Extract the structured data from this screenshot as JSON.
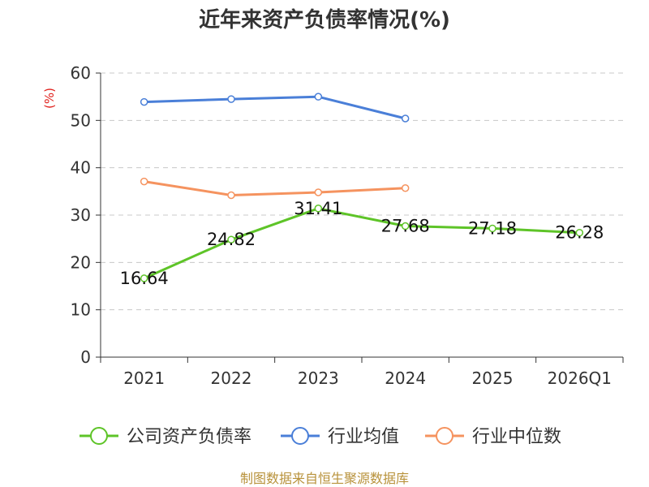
{
  "chart_data": {
    "type": "line",
    "title": "近年来资产负债率情况(%)",
    "ylabel": "(%)",
    "categories": [
      "2021",
      "2022",
      "2023",
      "2024",
      "2025",
      "2026Q1"
    ],
    "ylim": [
      0,
      60
    ],
    "yticks": [
      "0",
      "10",
      "20",
      "30",
      "40",
      "50",
      "60"
    ],
    "grid": true,
    "legend_position": "bottom",
    "series": [
      {
        "name": "公司资产负债率",
        "color": "#5ec428",
        "values": [
          16.64,
          24.82,
          31.41,
          27.68,
          27.18,
          26.28
        ],
        "labels": [
          "16.64",
          "24.82",
          "31.41",
          "27.68",
          "27.18",
          "26.28"
        ]
      },
      {
        "name": "行业均值",
        "color": "#4a7fd8",
        "values": [
          53.9,
          54.5,
          55.0,
          50.4,
          null,
          null
        ]
      },
      {
        "name": "行业中位数",
        "color": "#f5935f",
        "values": [
          37.1,
          34.2,
          34.8,
          35.7,
          null,
          null
        ]
      }
    ]
  },
  "source": "制图数据来自恒生聚源数据库"
}
